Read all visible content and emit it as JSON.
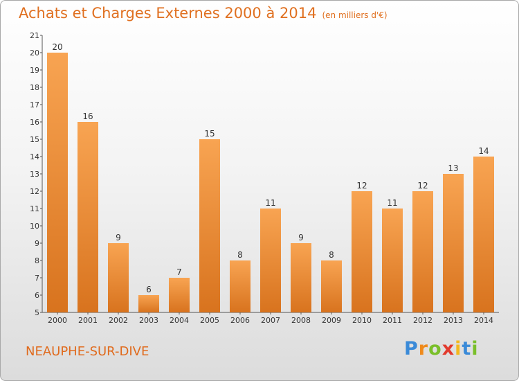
{
  "title": "Achats et Charges Externes 2000 à 2014",
  "subtitle": "(en milliers d'€)",
  "commune": "NEAUPHE-SUR-DIVE",
  "logo": {
    "letters": [
      "P",
      "r",
      "o",
      "x",
      "i",
      "t",
      "i"
    ],
    "colors": [
      "#3a8ad8",
      "#ef8a1c",
      "#7abf2a",
      "#e23b2e",
      "#f4b81c",
      "#3a8ad8",
      "#7abf2a"
    ]
  },
  "colors": {
    "bar_top": "#f8a452",
    "bar_bottom": "#d8731e",
    "title": "#e07020"
  },
  "chart_data": {
    "type": "bar",
    "title": "Achats et Charges Externes 2000 à 2014",
    "subtitle": "(en milliers d'€)",
    "categories": [
      "2000",
      "2001",
      "2002",
      "2003",
      "2004",
      "2005",
      "2006",
      "2007",
      "2008",
      "2009",
      "2010",
      "2011",
      "2012",
      "2013",
      "2014"
    ],
    "values": [
      20,
      16,
      9,
      6,
      7,
      15,
      8,
      11,
      9,
      8,
      12,
      11,
      12,
      13,
      14
    ],
    "ylim": [
      5,
      21
    ],
    "yticks": [
      5,
      6,
      7,
      8,
      9,
      10,
      11,
      12,
      13,
      14,
      15,
      16,
      17,
      18,
      19,
      20,
      21
    ],
    "grid": false,
    "legend": "none"
  }
}
